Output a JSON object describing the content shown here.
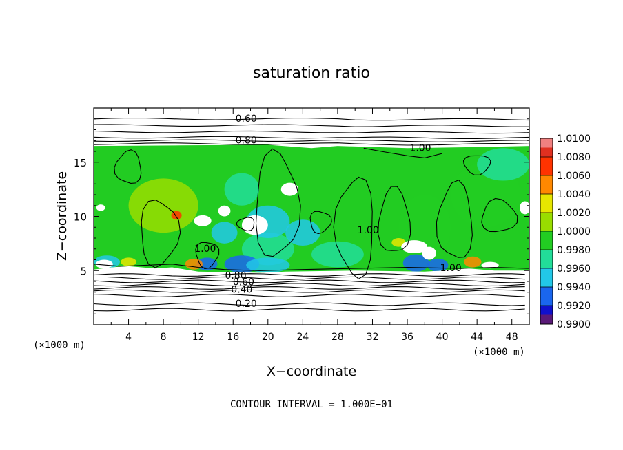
{
  "chart_data": {
    "type": "heatmap",
    "title": "saturation ratio",
    "xlabel": "X−coordinate",
    "ylabel": "Z−coordinate",
    "x_unit_label": "(×1000 m)",
    "y_unit_label": "(×1000 m)",
    "xlim": [
      0,
      50
    ],
    "ylim": [
      0,
      20
    ],
    "x_ticks": [
      "4",
      "8",
      "12",
      "16",
      "20",
      "24",
      "28",
      "32",
      "36",
      "40",
      "44",
      "48"
    ],
    "x_tick_values": [
      4,
      8,
      12,
      16,
      20,
      24,
      28,
      32,
      36,
      40,
      44,
      48
    ],
    "y_ticks": [
      "5",
      "10",
      "15"
    ],
    "y_tick_values": [
      5,
      10,
      15
    ],
    "contour_interval_label": "CONTOUR INTERVAL = 1.000E−01",
    "contour_labels": [
      {
        "text": "0.60",
        "x": 17.5,
        "z": 19.0
      },
      {
        "text": "0.80",
        "x": 17.5,
        "z": 17.0
      },
      {
        "text": "1.00",
        "x": 37.5,
        "z": 16.3
      },
      {
        "text": "1.00",
        "x": 31.5,
        "z": 8.7
      },
      {
        "text": "1.00",
        "x": 12.8,
        "z": 7.0
      },
      {
        "text": "1.00",
        "x": 41.0,
        "z": 5.2
      },
      {
        "text": "0.80",
        "x": 16.3,
        "z": 4.5
      },
      {
        "text": "0.60",
        "x": 17.2,
        "z": 3.9
      },
      {
        "text": "0.40",
        "x": 17.0,
        "z": 3.2
      },
      {
        "text": "0.20",
        "x": 17.5,
        "z": 1.9
      }
    ],
    "colorbar": {
      "labels": [
        "1.0100",
        "1.0080",
        "1.0060",
        "1.0040",
        "1.0020",
        "1.0000",
        "0.9980",
        "0.9960",
        "0.9940",
        "0.9920",
        "0.9900"
      ],
      "values": [
        1.01,
        1.008,
        1.006,
        1.004,
        1.002,
        1.0,
        0.998,
        0.996,
        0.994,
        0.992,
        0.99
      ],
      "colors": [
        "#f08080",
        "#e03020",
        "#ff3300",
        "#ff8800",
        "#e6e600",
        "#99dd00",
        "#22cc22",
        "#22dd99",
        "#22c8e8",
        "#1a66ee",
        "#1010cc",
        "#3a0a9a",
        "#5a1a78"
      ]
    },
    "field_extent_z": [
      5.0,
      16.5
    ],
    "dominant_value": 1.0
  }
}
